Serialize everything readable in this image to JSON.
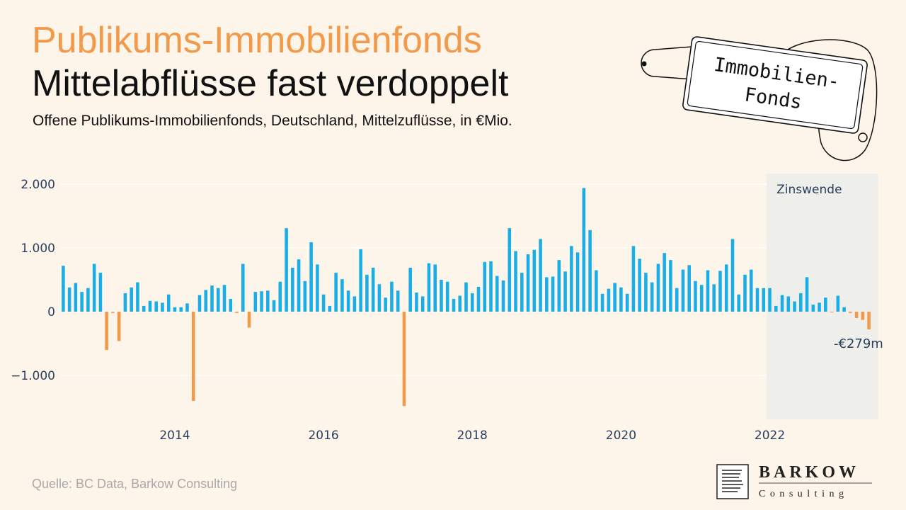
{
  "header": {
    "title": "Publikums-Immobilienfonds",
    "headline": "Mittelabflüsse fast verdoppelt",
    "subtitle": "Offene Publikums-Immobilienfonds, Deutschland, Mittelzuflüsse, in €Mio."
  },
  "tag": {
    "line1": "Immobilien-",
    "line2": "Fonds"
  },
  "footer": {
    "source": "Quelle: BC Data, Barkow Consulting"
  },
  "logo": {
    "name": "BARKOW",
    "sub": "Consulting"
  },
  "colors": {
    "positive": "#1aaee8",
    "negative": "#f29a4a",
    "highlight_band": "#eeeeea",
    "background": "#fdf4ea"
  },
  "chart_data": {
    "type": "bar",
    "title": "",
    "xlabel": "",
    "ylabel": "",
    "x_start": "2013-01",
    "x_ticks": [
      "2014",
      "2016",
      "2018",
      "2020",
      "2022"
    ],
    "y_ticks": [
      "2.000",
      "1.000",
      "0",
      "−1.000"
    ],
    "y_tick_values": [
      2000,
      1000,
      0,
      -1000
    ],
    "ylim": [
      -1700,
      2100
    ],
    "highlight": {
      "label": "Zinswende",
      "from": "2022-07",
      "to": "2023-12"
    },
    "last_value_label": "-€279m",
    "grid": true,
    "values": [
      720,
      380,
      450,
      310,
      370,
      750,
      610,
      -600,
      -20,
      -460,
      290,
      380,
      460,
      90,
      170,
      160,
      140,
      270,
      70,
      70,
      130,
      -1400,
      260,
      340,
      410,
      370,
      420,
      200,
      -20,
      750,
      -250,
      310,
      320,
      330,
      180,
      470,
      1310,
      690,
      820,
      480,
      1090,
      740,
      270,
      90,
      610,
      510,
      330,
      240,
      980,
      580,
      690,
      430,
      220,
      470,
      330,
      -1480,
      690,
      300,
      240,
      760,
      740,
      500,
      470,
      200,
      250,
      460,
      290,
      390,
      780,
      790,
      560,
      490,
      1310,
      950,
      610,
      900,
      970,
      1140,
      540,
      550,
      810,
      630,
      1030,
      930,
      1940,
      1280,
      650,
      280,
      360,
      450,
      380,
      280,
      1030,
      830,
      610,
      460,
      750,
      920,
      810,
      370,
      660,
      730,
      480,
      420,
      650,
      430,
      640,
      740,
      1140,
      270,
      580,
      660,
      370,
      370,
      370,
      90,
      260,
      240,
      160,
      290,
      540,
      110,
      140,
      220,
      -10,
      250,
      70,
      -20,
      -100,
      -130,
      -279
    ]
  }
}
